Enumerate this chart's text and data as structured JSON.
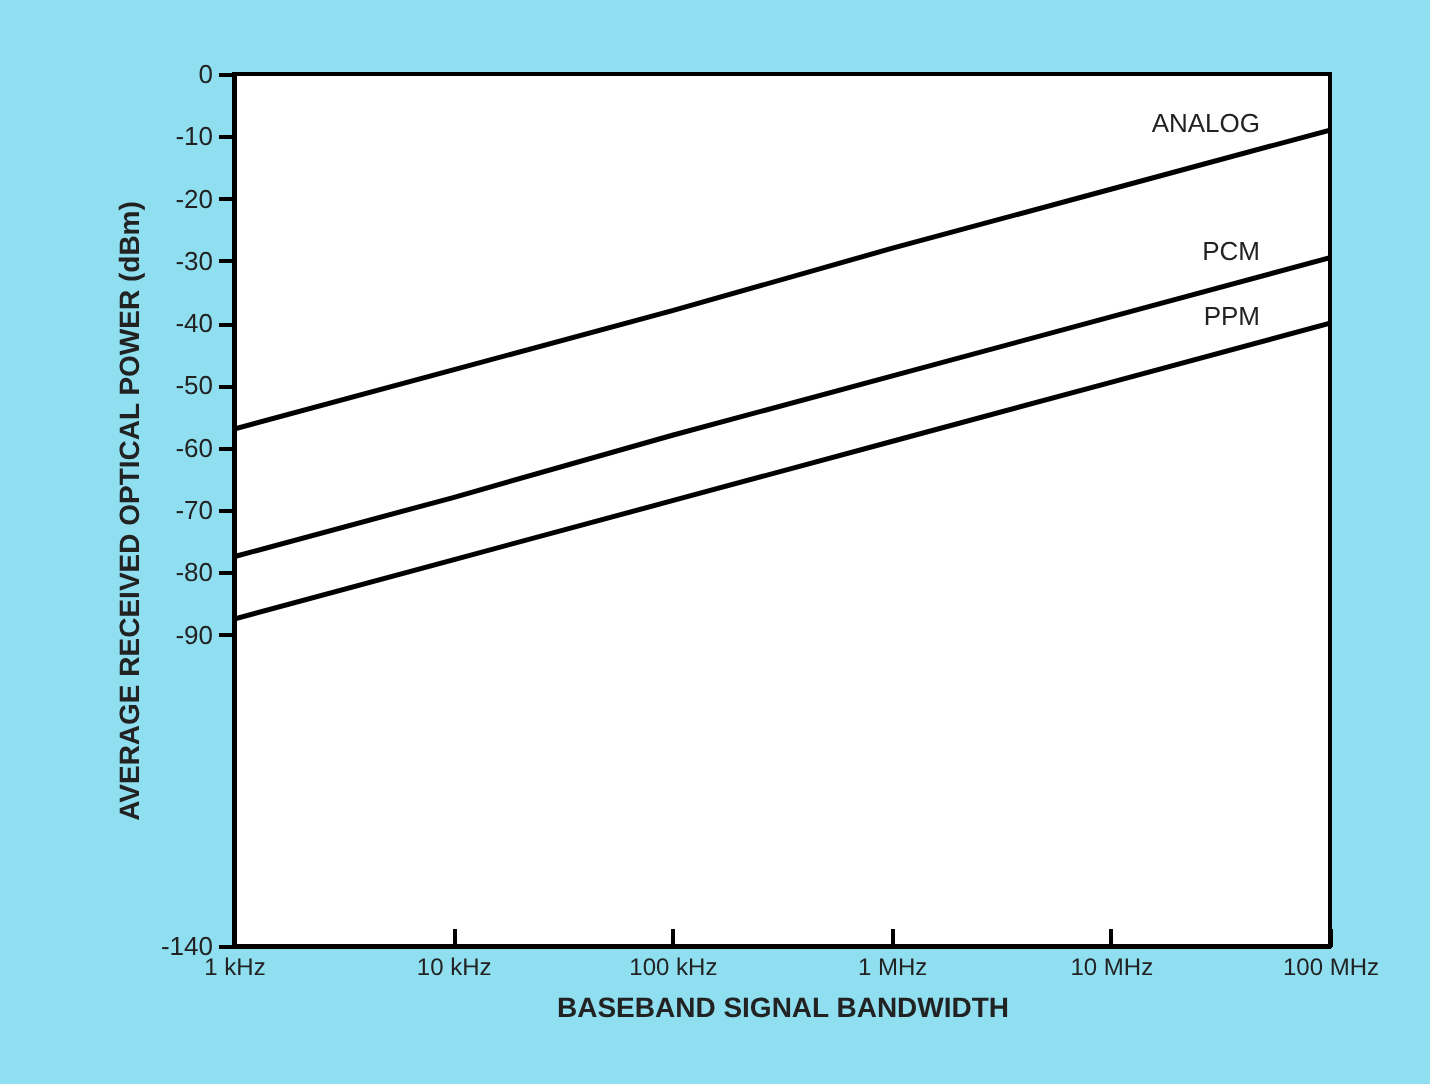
{
  "chart_data": {
    "type": "line",
    "xlabel": "BASEBAND SIGNAL BANDWIDTH",
    "ylabel": "AVERAGE RECEIVED OPTICAL POWER (dBm)",
    "categories": [
      "1 kHz",
      "10 kHz",
      "100 kHz",
      "1 MHz",
      "10 MHz",
      "100 MHz"
    ],
    "series": [
      {
        "name": "ANALOG",
        "color": "#000000",
        "values": [
          -57,
          -47.5,
          -38,
          -28,
          -18.5,
          -9
        ]
      },
      {
        "name": "PCM",
        "color": "#000000",
        "values": [
          -77.5,
          -68,
          -58,
          -48.5,
          -39,
          -29.5
        ]
      },
      {
        "name": "PPM",
        "color": "#000000",
        "values": [
          -87.5,
          -78,
          -68.5,
          -59,
          -49.5,
          -40
        ]
      }
    ],
    "ylim": [
      -140,
      0
    ],
    "yticks": [
      0,
      -10,
      -20,
      -30,
      -40,
      -50,
      -60,
      -70,
      -80,
      -90,
      -140
    ],
    "grid": false,
    "marker": "none",
    "line_style": "solid"
  }
}
